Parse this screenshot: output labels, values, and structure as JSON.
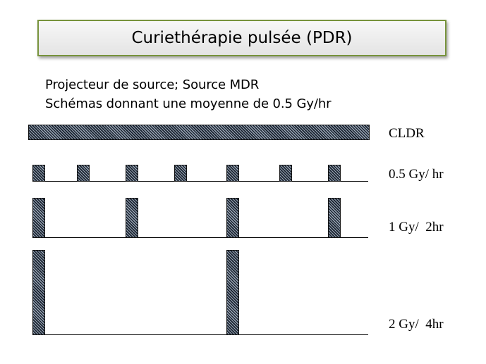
{
  "title": "Curiethérapie pulsée (PDR)",
  "subtitle": {
    "line1": "Projecteur de source;  Source MDR",
    "line2": "Schémas donnant une moyenne de 0.5 Gy/hr"
  },
  "rows": [
    {
      "label": "CLDR"
    },
    {
      "label": "0.5 Gy/ hr"
    },
    {
      "label": "1 Gy/  2hr"
    },
    {
      "label": "2 Gy/  4hr"
    }
  ],
  "colors": {
    "title_border": "#77933c",
    "pulse_fill": "#1a2330"
  }
}
